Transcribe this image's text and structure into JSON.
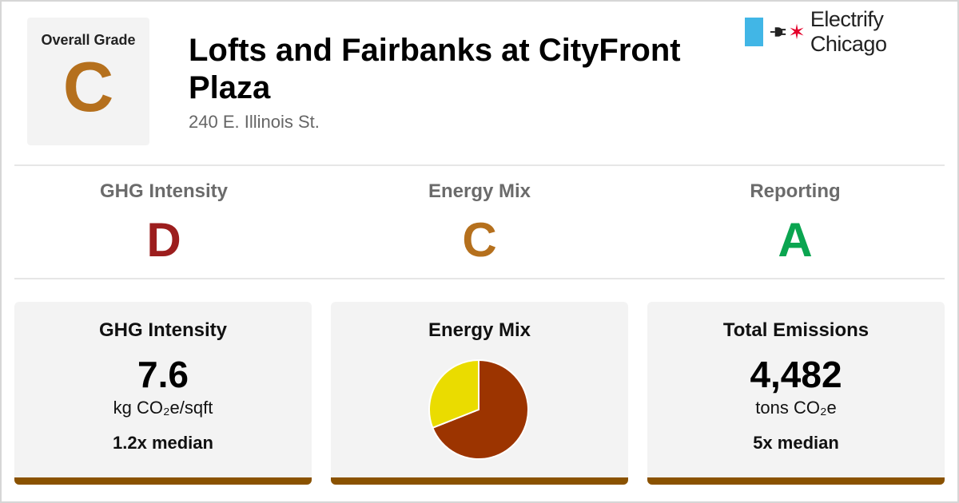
{
  "overall": {
    "label": "Overall Grade",
    "grade": "C",
    "grade_color": "#b5701d"
  },
  "building": {
    "name": "Lofts and Fairbanks at CityFront Plaza",
    "address": "240 E. Illinois St."
  },
  "brand": {
    "name": "Electrify Chicago",
    "flag_color": "#41b6e6",
    "star_color": "#e4002b"
  },
  "grades": [
    {
      "label": "GHG Intensity",
      "grade": "D",
      "color": "#9c1e1e"
    },
    {
      "label": "Energy Mix",
      "grade": "C",
      "color": "#b5701d"
    },
    {
      "label": "Reporting",
      "grade": "A",
      "color": "#0aa550"
    }
  ],
  "cards": {
    "ghg": {
      "title": "GHG Intensity",
      "value": "7.6",
      "unit": "kg CO₂e/sqft",
      "median": "1.2x median"
    },
    "mix": {
      "title": "Energy Mix"
    },
    "emissions": {
      "title": "Total Emissions",
      "value": "4,482",
      "unit": "tons CO₂e",
      "median": "5x median"
    }
  },
  "energy_mix": {
    "slices": [
      {
        "share": 0.69,
        "color": "#9c3400"
      },
      {
        "share": 0.31,
        "color": "#eadc00"
      }
    ]
  },
  "accent_bar_color": "#8a5200"
}
